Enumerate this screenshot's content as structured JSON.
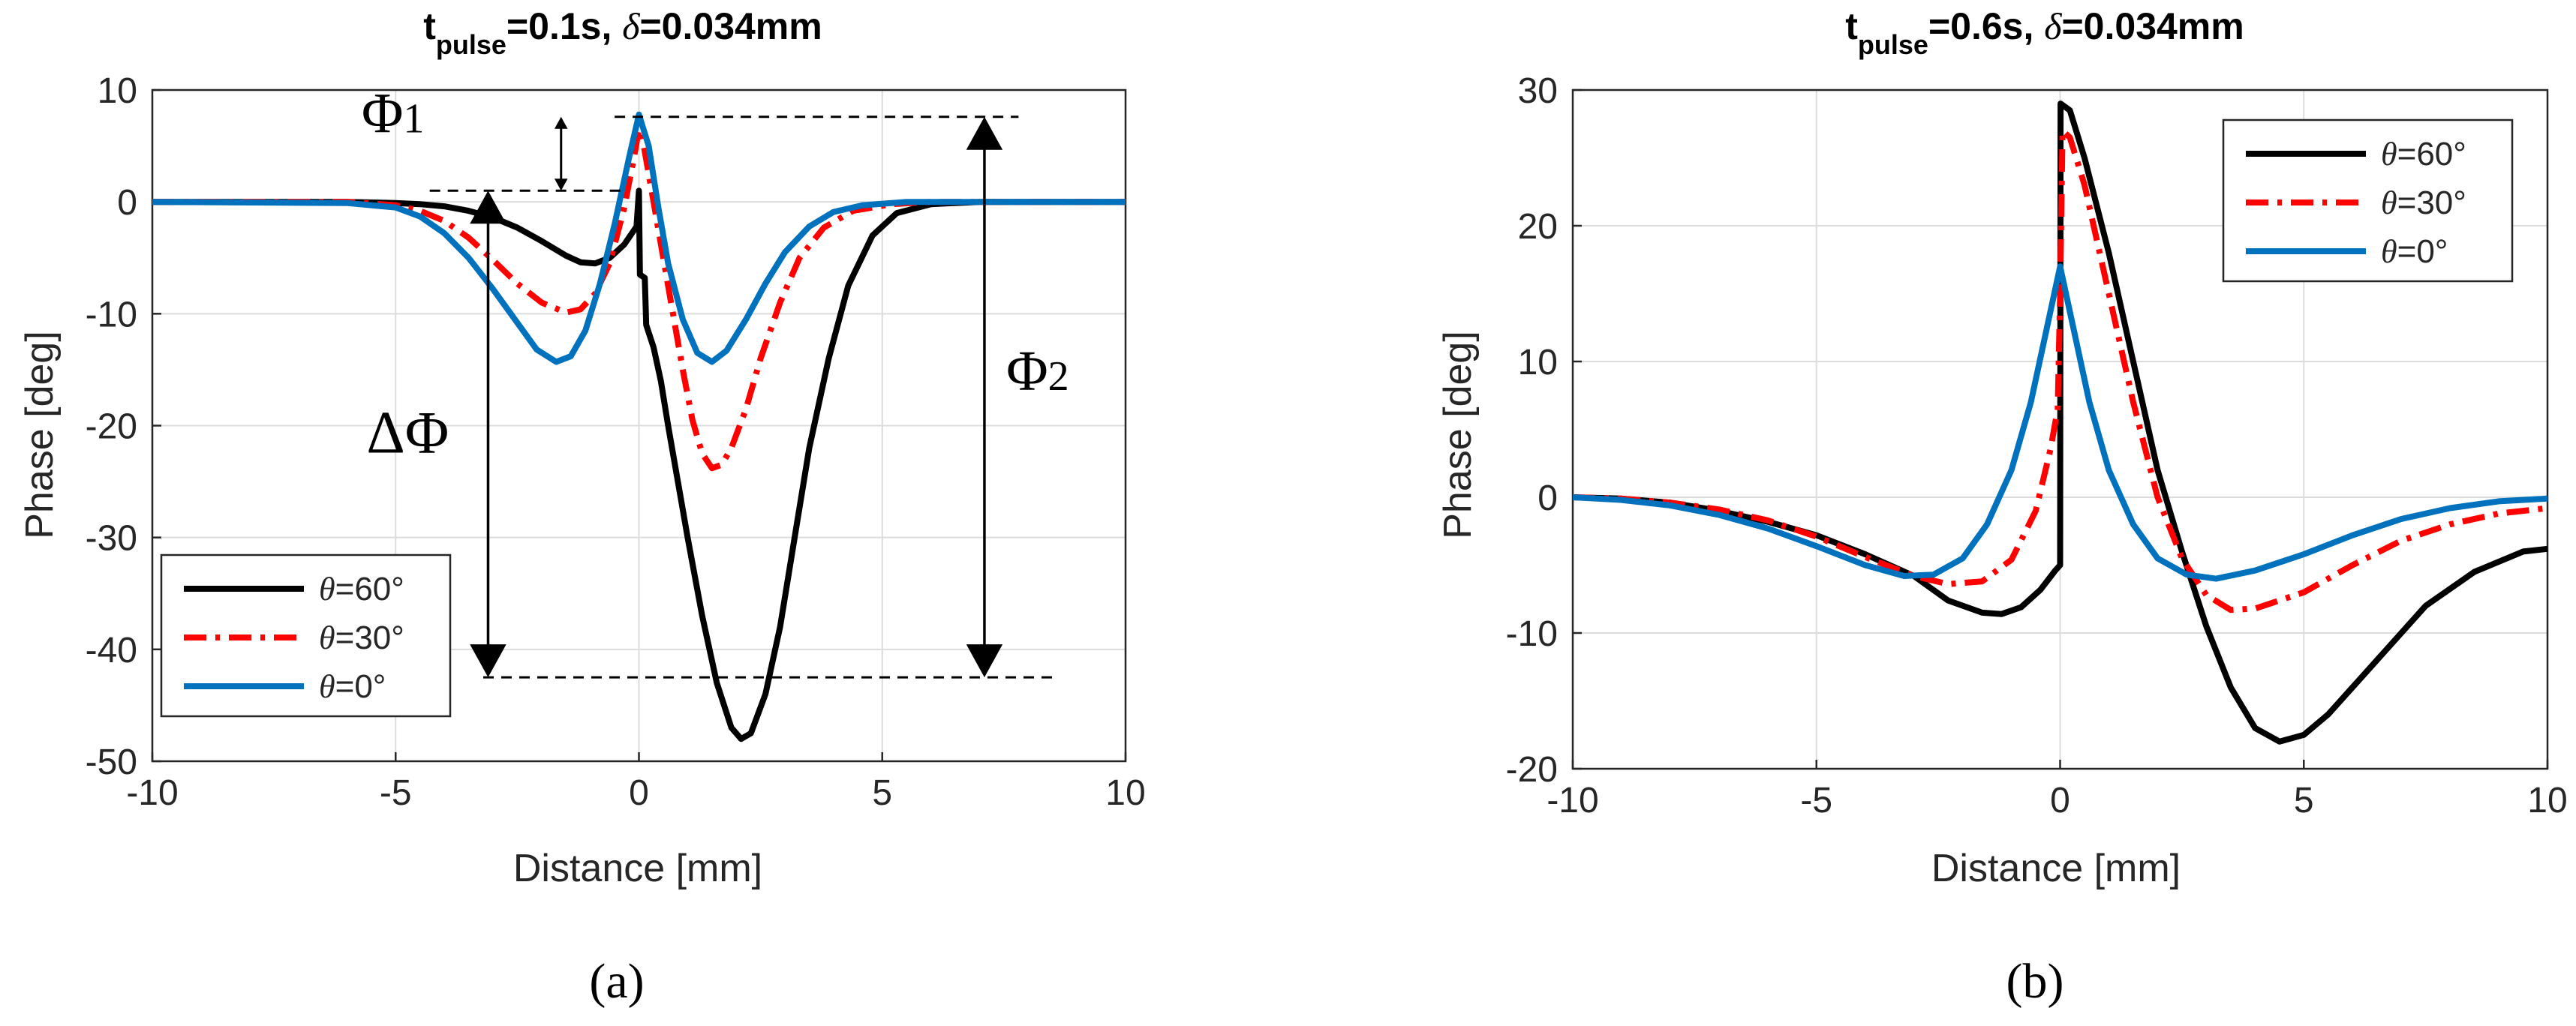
{
  "figure": {
    "panel_a_label": "(a)",
    "panel_b_label": "(b)"
  },
  "chart_data": [
    {
      "type": "line",
      "panel": "a",
      "title_t": "t",
      "title_sub": "pulse",
      "title_rest": "=0.1s, ",
      "title_delta": "δ",
      "title_end": "=0.034mm",
      "xlabel": "Distance [mm]",
      "ylabel": "Phase [deg]",
      "xlim": [
        -10,
        10
      ],
      "ylim": [
        -50,
        10
      ],
      "xticks": [
        -10,
        -5,
        0,
        5,
        10
      ],
      "xtick_labels": [
        "-10",
        "-5",
        "0",
        "5",
        "10"
      ],
      "yticks": [
        10,
        0,
        -10,
        -20,
        -30,
        -40,
        -50
      ],
      "ytick_labels": [
        "10",
        "0",
        "-10",
        "-20",
        "-30",
        "-40",
        "-50"
      ],
      "grid": true,
      "legend_position": "bottom-left",
      "series": [
        {
          "name": "θ=60°",
          "theta_symbol": "θ",
          "label_rest": "=60°",
          "color": "#000000",
          "style": "solid",
          "points": [
            [
              -10,
              0
            ],
            [
              -6,
              0
            ],
            [
              -5,
              -0.1
            ],
            [
              -4.5,
              -0.2
            ],
            [
              -4,
              -0.4
            ],
            [
              -3.5,
              -0.8
            ],
            [
              -3,
              -1.4
            ],
            [
              -2.5,
              -2.3
            ],
            [
              -2,
              -3.5
            ],
            [
              -1.5,
              -4.8
            ],
            [
              -1.2,
              -5.4
            ],
            [
              -0.9,
              -5.5
            ],
            [
              -0.6,
              -5.0
            ],
            [
              -0.3,
              -3.8
            ],
            [
              -0.05,
              -2.2
            ],
            [
              0,
              1
            ],
            [
              0.02,
              -6.5
            ],
            [
              0.12,
              -6.8
            ],
            [
              0.15,
              -11
            ],
            [
              0.3,
              -13
            ],
            [
              0.45,
              -16
            ],
            [
              0.6,
              -20
            ],
            [
              0.8,
              -25
            ],
            [
              1.0,
              -30
            ],
            [
              1.3,
              -37
            ],
            [
              1.6,
              -43
            ],
            [
              1.9,
              -47
            ],
            [
              2.1,
              -48
            ],
            [
              2.3,
              -47.5
            ],
            [
              2.6,
              -44
            ],
            [
              2.9,
              -38
            ],
            [
              3.2,
              -30
            ],
            [
              3.5,
              -22
            ],
            [
              3.9,
              -14
            ],
            [
              4.3,
              -7.5
            ],
            [
              4.8,
              -3
            ],
            [
              5.3,
              -1
            ],
            [
              6,
              -0.2
            ],
            [
              7,
              0
            ],
            [
              10,
              0
            ]
          ]
        },
        {
          "name": "θ=30°",
          "theta_symbol": "θ",
          "label_rest": "=30°",
          "color": "#ff0000",
          "style": "dashdot",
          "points": [
            [
              -10,
              0
            ],
            [
              -6,
              0
            ],
            [
              -5,
              -0.3
            ],
            [
              -4.5,
              -0.8
            ],
            [
              -4,
              -1.7
            ],
            [
              -3.5,
              -3.2
            ],
            [
              -3,
              -5.2
            ],
            [
              -2.5,
              -7.3
            ],
            [
              -2,
              -9.0
            ],
            [
              -1.5,
              -9.9
            ],
            [
              -1.2,
              -9.6
            ],
            [
              -0.9,
              -8.2
            ],
            [
              -0.6,
              -5.5
            ],
            [
              -0.3,
              -0.5
            ],
            [
              -0.1,
              4
            ],
            [
              0,
              6.5
            ],
            [
              0.1,
              5
            ],
            [
              0.3,
              0
            ],
            [
              0.5,
              -5
            ],
            [
              0.7,
              -10
            ],
            [
              0.9,
              -15
            ],
            [
              1.1,
              -19.5
            ],
            [
              1.3,
              -22.5
            ],
            [
              1.5,
              -23.8
            ],
            [
              1.7,
              -23.5
            ],
            [
              1.9,
              -22
            ],
            [
              2.2,
              -18.5
            ],
            [
              2.5,
              -14
            ],
            [
              2.9,
              -9
            ],
            [
              3.3,
              -5
            ],
            [
              3.8,
              -2.3
            ],
            [
              4.4,
              -0.8
            ],
            [
              5.2,
              -0.2
            ],
            [
              6,
              0
            ],
            [
              10,
              0
            ]
          ]
        },
        {
          "name": "θ=0°",
          "theta_symbol": "θ",
          "label_rest": "=0°",
          "color": "#0072bd",
          "style": "solid",
          "points": [
            [
              -10,
              0
            ],
            [
              -6,
              -0.1
            ],
            [
              -5,
              -0.5
            ],
            [
              -4.5,
              -1.3
            ],
            [
              -4,
              -2.8
            ],
            [
              -3.5,
              -5.0
            ],
            [
              -3,
              -7.8
            ],
            [
              -2.5,
              -10.8
            ],
            [
              -2.1,
              -13.2
            ],
            [
              -1.7,
              -14.3
            ],
            [
              -1.4,
              -13.8
            ],
            [
              -1.1,
              -11.5
            ],
            [
              -0.8,
              -7.3
            ],
            [
              -0.5,
              -2
            ],
            [
              -0.2,
              4
            ],
            [
              0,
              7.8
            ],
            [
              0.2,
              5
            ],
            [
              0.4,
              -0.5
            ],
            [
              0.6,
              -5.5
            ],
            [
              0.9,
              -10.5
            ],
            [
              1.2,
              -13.5
            ],
            [
              1.5,
              -14.3
            ],
            [
              1.8,
              -13.3
            ],
            [
              2.2,
              -10.5
            ],
            [
              2.6,
              -7.3
            ],
            [
              3.0,
              -4.5
            ],
            [
              3.5,
              -2.2
            ],
            [
              4,
              -0.9
            ],
            [
              4.6,
              -0.3
            ],
            [
              5.5,
              0
            ],
            [
              10,
              0
            ]
          ]
        }
      ],
      "annotations": {
        "phi1": "Φ",
        "phi1_sub": "1",
        "phi2": "Φ",
        "phi2_sub": "2",
        "delta_phi": "ΔΦ"
      }
    },
    {
      "type": "line",
      "panel": "b",
      "title_t": "t",
      "title_sub": "pulse",
      "title_rest": "=0.6s, ",
      "title_delta": "δ",
      "title_end": "=0.034mm",
      "xlabel": "Distance [mm]",
      "ylabel": "Phase [deg]",
      "xlim": [
        -10,
        10
      ],
      "ylim": [
        -20,
        30
      ],
      "xticks": [
        -10,
        -5,
        0,
        5,
        10
      ],
      "xtick_labels": [
        "-10",
        "-5",
        "0",
        "5",
        "10"
      ],
      "yticks": [
        30,
        20,
        10,
        0,
        -10,
        -20
      ],
      "ytick_labels": [
        "30",
        "20",
        "10",
        "0",
        "-10",
        "-20"
      ],
      "grid": true,
      "legend_position": "top-right",
      "series": [
        {
          "name": "θ=60°",
          "theta_symbol": "θ",
          "label_rest": "=60°",
          "color": "#000000",
          "style": "solid",
          "points": [
            [
              -10,
              0
            ],
            [
              -9,
              -0.1
            ],
            [
              -8,
              -0.4
            ],
            [
              -7,
              -1.0
            ],
            [
              -6,
              -1.8
            ],
            [
              -5,
              -2.8
            ],
            [
              -4,
              -4.2
            ],
            [
              -3,
              -5.8
            ],
            [
              -2.3,
              -7.6
            ],
            [
              -1.6,
              -8.5
            ],
            [
              -1.2,
              -8.6
            ],
            [
              -0.8,
              -8.1
            ],
            [
              -0.4,
              -6.8
            ],
            [
              -0.1,
              -5.4
            ],
            [
              0,
              -5.0
            ],
            [
              0.01,
              29
            ],
            [
              0.2,
              28.5
            ],
            [
              0.5,
              25
            ],
            [
              1.0,
              18
            ],
            [
              1.5,
              10
            ],
            [
              2.0,
              2
            ],
            [
              2.5,
              -4
            ],
            [
              3.0,
              -9.5
            ],
            [
              3.5,
              -14
            ],
            [
              4.0,
              -17
            ],
            [
              4.5,
              -18
            ],
            [
              5.0,
              -17.5
            ],
            [
              5.5,
              -16
            ],
            [
              6.5,
              -12
            ],
            [
              7.5,
              -8
            ],
            [
              8.5,
              -5.5
            ],
            [
              9.5,
              -4
            ],
            [
              10,
              -3.8
            ]
          ]
        },
        {
          "name": "θ=30°",
          "theta_symbol": "θ",
          "label_rest": "=30°",
          "color": "#ff0000",
          "style": "dashdot",
          "points": [
            [
              -10,
              0
            ],
            [
              -9,
              -0.1
            ],
            [
              -8,
              -0.4
            ],
            [
              -7,
              -0.9
            ],
            [
              -6,
              -1.7
            ],
            [
              -5,
              -2.9
            ],
            [
              -4,
              -4.4
            ],
            [
              -3,
              -5.8
            ],
            [
              -2.3,
              -6.4
            ],
            [
              -1.6,
              -6.2
            ],
            [
              -1,
              -4.6
            ],
            [
              -0.5,
              -1
            ],
            [
              -0.2,
              3.5
            ],
            [
              -0.05,
              6.5
            ],
            [
              0,
              15
            ],
            [
              0.05,
              27
            ],
            [
              0.2,
              26.5
            ],
            [
              0.5,
              23
            ],
            [
              1,
              15
            ],
            [
              1.5,
              7
            ],
            [
              2,
              0
            ],
            [
              2.5,
              -4.5
            ],
            [
              3,
              -7.2
            ],
            [
              3.5,
              -8.3
            ],
            [
              4,
              -8.2
            ],
            [
              5,
              -7
            ],
            [
              6,
              -5
            ],
            [
              7,
              -3.2
            ],
            [
              8,
              -2
            ],
            [
              9,
              -1.2
            ],
            [
              10,
              -0.8
            ]
          ]
        },
        {
          "name": "θ=0°",
          "theta_symbol": "θ",
          "label_rest": "=0°",
          "color": "#0072bd",
          "style": "solid",
          "points": [
            [
              -10,
              0
            ],
            [
              -9,
              -0.2
            ],
            [
              -8,
              -0.6
            ],
            [
              -7,
              -1.3
            ],
            [
              -6,
              -2.3
            ],
            [
              -5,
              -3.6
            ],
            [
              -4,
              -5.0
            ],
            [
              -3.2,
              -5.8
            ],
            [
              -2.6,
              -5.7
            ],
            [
              -2,
              -4.5
            ],
            [
              -1.5,
              -2
            ],
            [
              -1,
              2
            ],
            [
              -0.6,
              7
            ],
            [
              -0.3,
              12
            ],
            [
              0,
              17
            ],
            [
              0.3,
              12
            ],
            [
              0.6,
              7
            ],
            [
              1,
              2
            ],
            [
              1.5,
              -2
            ],
            [
              2,
              -4.5
            ],
            [
              2.6,
              -5.7
            ],
            [
              3.2,
              -6
            ],
            [
              4,
              -5.4
            ],
            [
              5,
              -4.2
            ],
            [
              6,
              -2.8
            ],
            [
              7,
              -1.6
            ],
            [
              8,
              -0.8
            ],
            [
              9,
              -0.3
            ],
            [
              10,
              -0.1
            ]
          ]
        }
      ]
    }
  ]
}
